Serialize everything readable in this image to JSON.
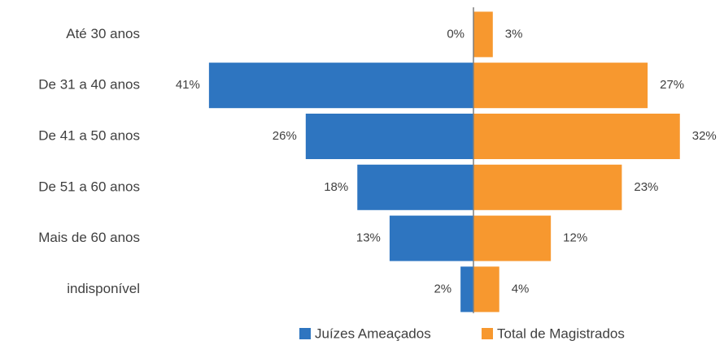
{
  "chart_data": {
    "type": "pyramid",
    "categories": [
      "Até 30 anos",
      "De 31 a 40 anos",
      "De 41 a 50 anos",
      "De 51 a 60 anos",
      "Mais de 60 anos",
      "indisponível"
    ],
    "series": [
      {
        "name": "Juízes Ameaçados",
        "color": "#2e75c0",
        "values": [
          0,
          41,
          26,
          18,
          13,
          2
        ],
        "value_labels": [
          "0%",
          "41%",
          "26%",
          "18%",
          "13%",
          "2%"
        ]
      },
      {
        "name": "Total de Magistrados",
        "color": "#f7982f",
        "values": [
          3,
          27,
          32,
          23,
          12,
          4
        ],
        "value_labels": [
          "3%",
          "27%",
          "32%",
          "23%",
          "12%",
          "4%"
        ]
      }
    ]
  }
}
